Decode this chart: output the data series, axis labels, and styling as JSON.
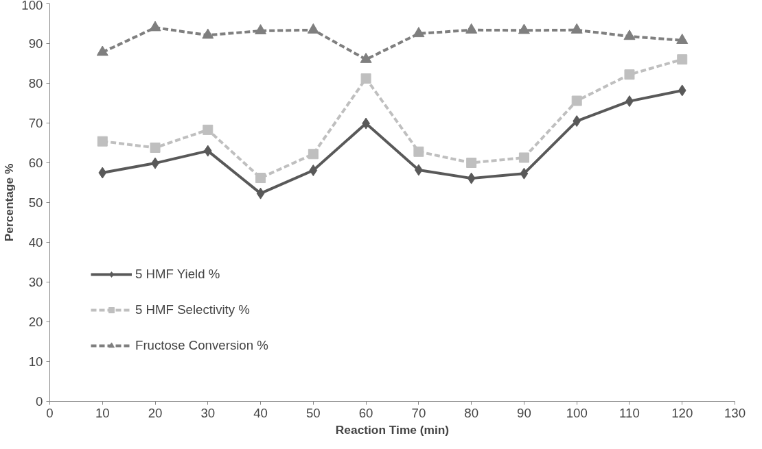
{
  "chart_data": {
    "type": "line",
    "xlabel": "Reaction Time (min)",
    "ylabel": "Percentage %",
    "x": [
      10,
      20,
      30,
      40,
      50,
      60,
      70,
      80,
      90,
      100,
      110,
      120
    ],
    "xlim": [
      0,
      130
    ],
    "xticks": [
      0,
      10,
      20,
      30,
      40,
      50,
      60,
      70,
      80,
      90,
      100,
      110,
      120,
      130
    ],
    "ylim": [
      0,
      100
    ],
    "yticks": [
      0,
      10,
      20,
      30,
      40,
      50,
      60,
      70,
      80,
      90,
      100
    ],
    "grid": false,
    "legend": "left",
    "series": [
      {
        "name": "5 HMF Yield %",
        "color": "#595959",
        "marker": "diamond",
        "line_style": "solid",
        "values": [
          57.5,
          59.9,
          63.0,
          52.3,
          58.1,
          69.9,
          58.2,
          56.1,
          57.3,
          70.5,
          75.5,
          78.2
        ]
      },
      {
        "name": "5 HMF Selectivity %",
        "color": "#bfbfbf",
        "marker": "square",
        "line_style": "dashed",
        "values": [
          65.4,
          63.8,
          68.3,
          56.2,
          62.2,
          81.2,
          62.8,
          60.0,
          61.3,
          75.6,
          82.2,
          86.0
        ]
      },
      {
        "name": "Fructose Conversion %",
        "color": "#7f7f7f",
        "marker": "triangle",
        "line_style": "dashed",
        "values": [
          87.8,
          94.0,
          92.1,
          93.2,
          93.4,
          86.0,
          92.5,
          93.4,
          93.3,
          93.4,
          91.8,
          90.8
        ]
      }
    ]
  }
}
